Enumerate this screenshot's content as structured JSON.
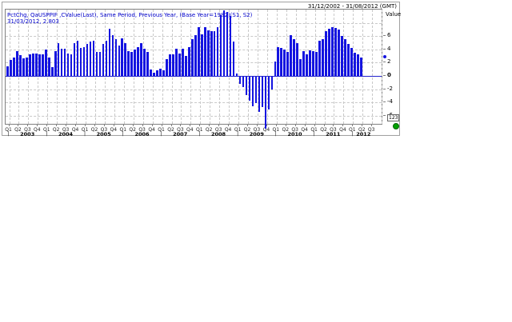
{
  "header": {
    "date_range": "31/12/2002 - 31/08/2012 (GMT)",
    "axis_title": "Value"
  },
  "legend": {
    "line1": "PctChg, QaUSPPIF ,CValue(Last), Same Period, Previous Year, (Base Year=1982)(S1, S2)",
    "line2": "31/03/2012, 2.803"
  },
  "status": {
    "connection_dot_color": "#00a000"
  },
  "chart_data": {
    "type": "bar",
    "title": "PctChg, QaUSPPIF ,CValue(Last), Same Period, Previous Year, (Base Year=1982)(S1, S2)",
    "frequency": "monthly",
    "start_month": "2002-12",
    "end_month": "2012-03",
    "values": [
      1.5,
      2.4,
      2.8,
      3.8,
      3.1,
      2.7,
      2.8,
      3.2,
      3.4,
      3.4,
      3.3,
      3.3,
      4.0,
      2.8,
      1.3,
      3.7,
      5.0,
      4.1,
      4.1,
      3.4,
      3.2,
      4.9,
      5.3,
      4.2,
      4.3,
      4.8,
      5.2,
      5.3,
      3.6,
      3.6,
      4.8,
      5.3,
      7.1,
      6.1,
      5.5,
      4.6,
      5.7,
      4.9,
      3.8,
      3.6,
      4.0,
      4.4,
      4.9,
      4.1,
      3.6,
      1.0,
      0.5,
      0.9,
      1.1,
      0.9,
      2.5,
      3.2,
      3.3,
      4.1,
      3.4,
      4.1,
      3.0,
      4.4,
      5.5,
      6.2,
      7.4,
      6.3,
      7.4,
      6.9,
      6.7,
      6.8,
      7.3,
      9.2,
      9.9,
      9.7,
      9.0,
      5.2,
      0.4,
      -1.1,
      -1.6,
      -2.8,
      -3.6,
      -4.4,
      -4.0,
      -5.3,
      -4.6,
      -7.8,
      -4.9,
      -1.9,
      2.2,
      4.3,
      4.2,
      4.0,
      3.6,
      6.1,
      5.6,
      5.0,
      2.5,
      3.7,
      3.2,
      3.9,
      3.8,
      3.6,
      5.3,
      5.5,
      6.8,
      7.1,
      7.3,
      7.2,
      7.0,
      6.0,
      5.5,
      4.8,
      4.2,
      3.5,
      3.3,
      2.8
    ],
    "ylabel": "Value",
    "ylim": [
      -7.45,
      10.0
    ],
    "yticks_labeled": [
      6,
      4,
      2,
      0,
      -2,
      -4,
      -6
    ],
    "gridlines_y": [
      8,
      6,
      4,
      2,
      -2,
      -4,
      -6
    ],
    "grid": "dashed",
    "quarter_label_cycle": [
      "Q1",
      "Q2",
      "Q3",
      "Q4"
    ],
    "x_axis_quarters": "Q1 2003 through Q3 2012",
    "years": [
      "2003",
      "2004",
      "2005",
      "2006",
      "2007",
      "2008",
      "2009",
      "2010",
      "2011",
      "2012"
    ],
    "bar_color": "#1414e0",
    "zero_line_color": "#2222cc",
    "last_point": {
      "date": "31/03/2012",
      "value": 2.803
    },
    "value_axis_format_badge": "123"
  }
}
